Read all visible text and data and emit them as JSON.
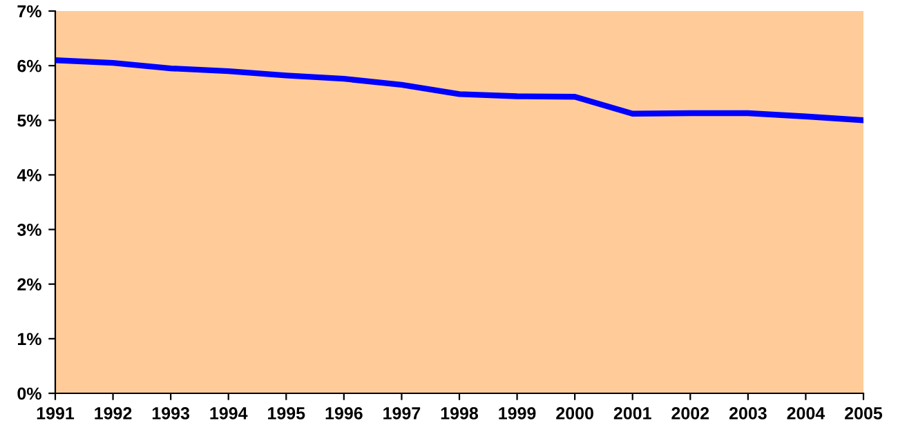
{
  "chart_data": {
    "type": "line",
    "x": [
      1991,
      1992,
      1993,
      1994,
      1995,
      1996,
      1997,
      1998,
      1999,
      2000,
      2001,
      2002,
      2003,
      2004,
      2005
    ],
    "series": [
      {
        "color": "#0000ff",
        "values": [
          6.1,
          6.05,
          5.95,
          5.9,
          5.82,
          5.76,
          5.65,
          5.48,
          5.44,
          5.43,
          5.12,
          5.13,
          5.13,
          5.07,
          5.0
        ]
      }
    ],
    "xlim": [
      1991,
      2005
    ],
    "xticks": [
      1991,
      1992,
      1993,
      1994,
      1995,
      1996,
      1997,
      1998,
      1999,
      2000,
      2001,
      2002,
      2003,
      2004,
      2005
    ],
    "ylim": [
      0,
      7
    ],
    "yticks": [
      {
        "value": 0,
        "label": "0%"
      },
      {
        "value": 1,
        "label": "1%"
      },
      {
        "value": 2,
        "label": "2%"
      },
      {
        "value": 3,
        "label": "3%"
      },
      {
        "value": 4,
        "label": "4%"
      },
      {
        "value": 5,
        "label": "5%"
      },
      {
        "value": 6,
        "label": "6%"
      },
      {
        "value": 7,
        "label": "7%"
      }
    ],
    "grid": false,
    "marker": "none",
    "line_style": "solid"
  }
}
